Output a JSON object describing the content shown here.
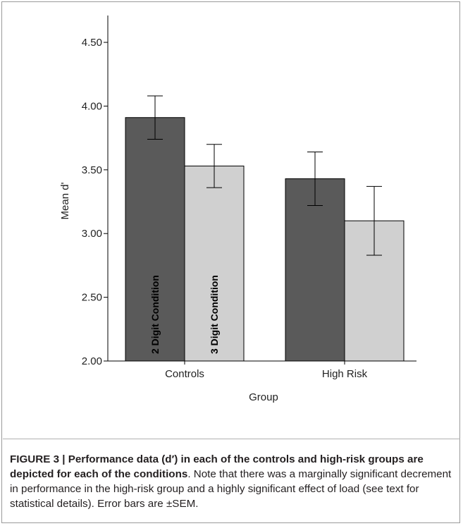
{
  "chart_data": {
    "type": "bar",
    "categories": [
      "Controls",
      "High Risk"
    ],
    "series": [
      {
        "name": "2 Digit Condition",
        "values": [
          3.91,
          3.43
        ],
        "error": [
          0.17,
          0.21
        ],
        "color": "#5a5a5a"
      },
      {
        "name": "3 Digit Condition",
        "values": [
          3.53,
          3.1
        ],
        "error": [
          0.17,
          0.27
        ],
        "color": "#d0d0d0"
      }
    ],
    "xlabel": "Group",
    "ylabel": "Mean d'",
    "ylim": [
      2.0,
      4.6
    ],
    "yticks": [
      "2.00",
      "2.50",
      "3.00",
      "3.50",
      "4.00",
      "4.50"
    ],
    "ytick_values": [
      2.0,
      2.5,
      3.0,
      3.5,
      4.0,
      4.5
    ],
    "grid": false,
    "legend": "none"
  },
  "caption": {
    "bold_part": "FIGURE 3 | Performance data (d′) in each of the controls and high-risk groups are depicted for each of the conditions",
    "regular_part": ". Note that there was a marginally significant decrement in performance in the high-risk group and a highly significant effect of load (see text for statistical details). Error bars are ±SEM."
  }
}
